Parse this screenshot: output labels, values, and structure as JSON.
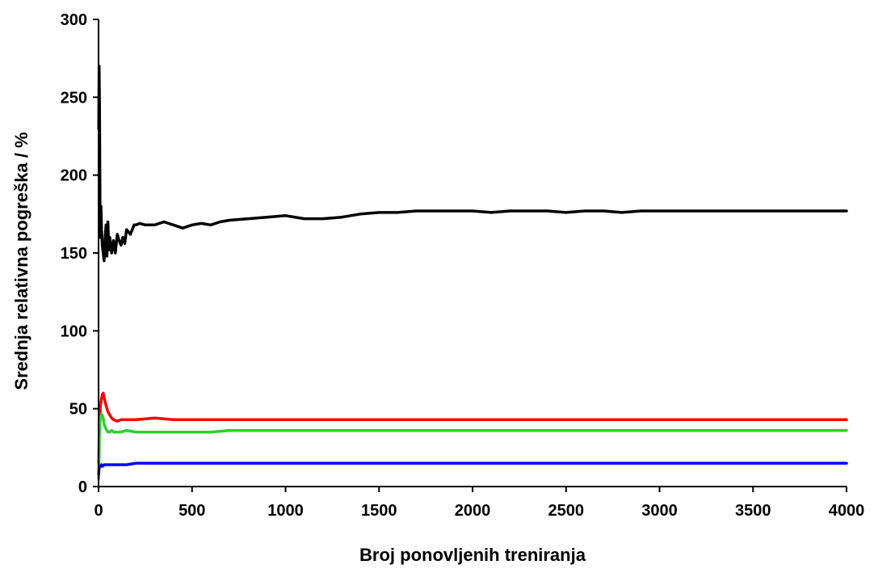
{
  "chart_data": {
    "type": "line",
    "title": "",
    "xlabel": "Broj ponovljenih treniranja",
    "ylabel": "Srednja relativna pogreška / %",
    "xlim": [
      0,
      4000
    ],
    "ylim": [
      0,
      300
    ],
    "xticks": [
      0,
      500,
      1000,
      1500,
      2000,
      2500,
      3000,
      3500,
      4000
    ],
    "yticks": [
      0,
      50,
      100,
      150,
      200,
      250,
      300
    ],
    "grid": false,
    "legend": "none",
    "series": [
      {
        "color": "#000000",
        "x": [
          1,
          3,
          5,
          8,
          10,
          13,
          16,
          20,
          25,
          30,
          35,
          40,
          45,
          50,
          55,
          60,
          70,
          80,
          90,
          100,
          110,
          120,
          130,
          140,
          150,
          170,
          190,
          200,
          220,
          250,
          300,
          350,
          400,
          450,
          500,
          550,
          600,
          650,
          700,
          800,
          900,
          1000,
          1100,
          1200,
          1300,
          1400,
          1500,
          1600,
          1700,
          1800,
          1900,
          2000,
          2100,
          2200,
          2300,
          2400,
          2500,
          2600,
          2700,
          2800,
          2900,
          3000,
          3100,
          3200,
          3300,
          3400,
          3500,
          3600,
          3700,
          3800,
          3900,
          4000
        ],
        "y": [
          230,
          270,
          245,
          175,
          160,
          180,
          165,
          155,
          150,
          145,
          160,
          168,
          148,
          170,
          152,
          160,
          150,
          158,
          150,
          162,
          158,
          155,
          160,
          156,
          165,
          162,
          168,
          168,
          169,
          168,
          168,
          170,
          168,
          166,
          168,
          169,
          168,
          170,
          171,
          172,
          173,
          174,
          172,
          172,
          173,
          175,
          176,
          176,
          177,
          177,
          177,
          177,
          176,
          177,
          177,
          177,
          176,
          177,
          177,
          176,
          177,
          177,
          177,
          177,
          177,
          177,
          177,
          177,
          177,
          177,
          177,
          177
        ]
      },
      {
        "color": "#ff0000",
        "x": [
          1,
          3,
          5,
          8,
          10,
          15,
          20,
          25,
          30,
          40,
          50,
          60,
          70,
          80,
          100,
          120,
          150,
          200,
          300,
          400,
          500,
          600,
          700,
          800,
          900,
          1000,
          1200,
          1400,
          1600,
          1800,
          2000,
          2200,
          2400,
          2600,
          2800,
          3000,
          3200,
          3400,
          3600,
          3800,
          4000
        ],
        "y": [
          15,
          30,
          40,
          48,
          52,
          56,
          59,
          60,
          57,
          52,
          48,
          46,
          44,
          43,
          42,
          43,
          43,
          43,
          44,
          43,
          43,
          43,
          43,
          43,
          43,
          43,
          43,
          43,
          43,
          43,
          43,
          43,
          43,
          43,
          43,
          43,
          43,
          43,
          43,
          43,
          43
        ]
      },
      {
        "color": "#33cc33",
        "x": [
          1,
          3,
          5,
          8,
          10,
          15,
          20,
          25,
          30,
          40,
          50,
          60,
          70,
          80,
          100,
          120,
          150,
          200,
          300,
          400,
          500,
          600,
          700,
          800,
          900,
          1000,
          1200,
          1400,
          1600,
          1800,
          2000,
          2200,
          2400,
          2600,
          2800,
          3000,
          3200,
          3400,
          3600,
          3800,
          4000
        ],
        "y": [
          5,
          20,
          35,
          42,
          44,
          46,
          46,
          44,
          40,
          37,
          35,
          35,
          36,
          35,
          35,
          35,
          36,
          35,
          35,
          35,
          35,
          35,
          36,
          36,
          36,
          36,
          36,
          36,
          36,
          36,
          36,
          36,
          36,
          36,
          36,
          36,
          36,
          36,
          36,
          36,
          36
        ]
      },
      {
        "color": "#0000ff",
        "x": [
          1,
          3,
          5,
          10,
          15,
          20,
          30,
          40,
          60,
          80,
          100,
          150,
          200,
          300,
          400,
          500,
          600,
          800,
          1000,
          1200,
          1400,
          1600,
          1800,
          2000,
          2200,
          2400,
          2600,
          2800,
          3000,
          3200,
          3400,
          3600,
          3800,
          4000
        ],
        "y": [
          8,
          12,
          13,
          13,
          14,
          13,
          14,
          14,
          14,
          14,
          14,
          14,
          15,
          15,
          15,
          15,
          15,
          15,
          15,
          15,
          15,
          15,
          15,
          15,
          15,
          15,
          15,
          15,
          15,
          15,
          15,
          15,
          15,
          15
        ]
      }
    ]
  }
}
